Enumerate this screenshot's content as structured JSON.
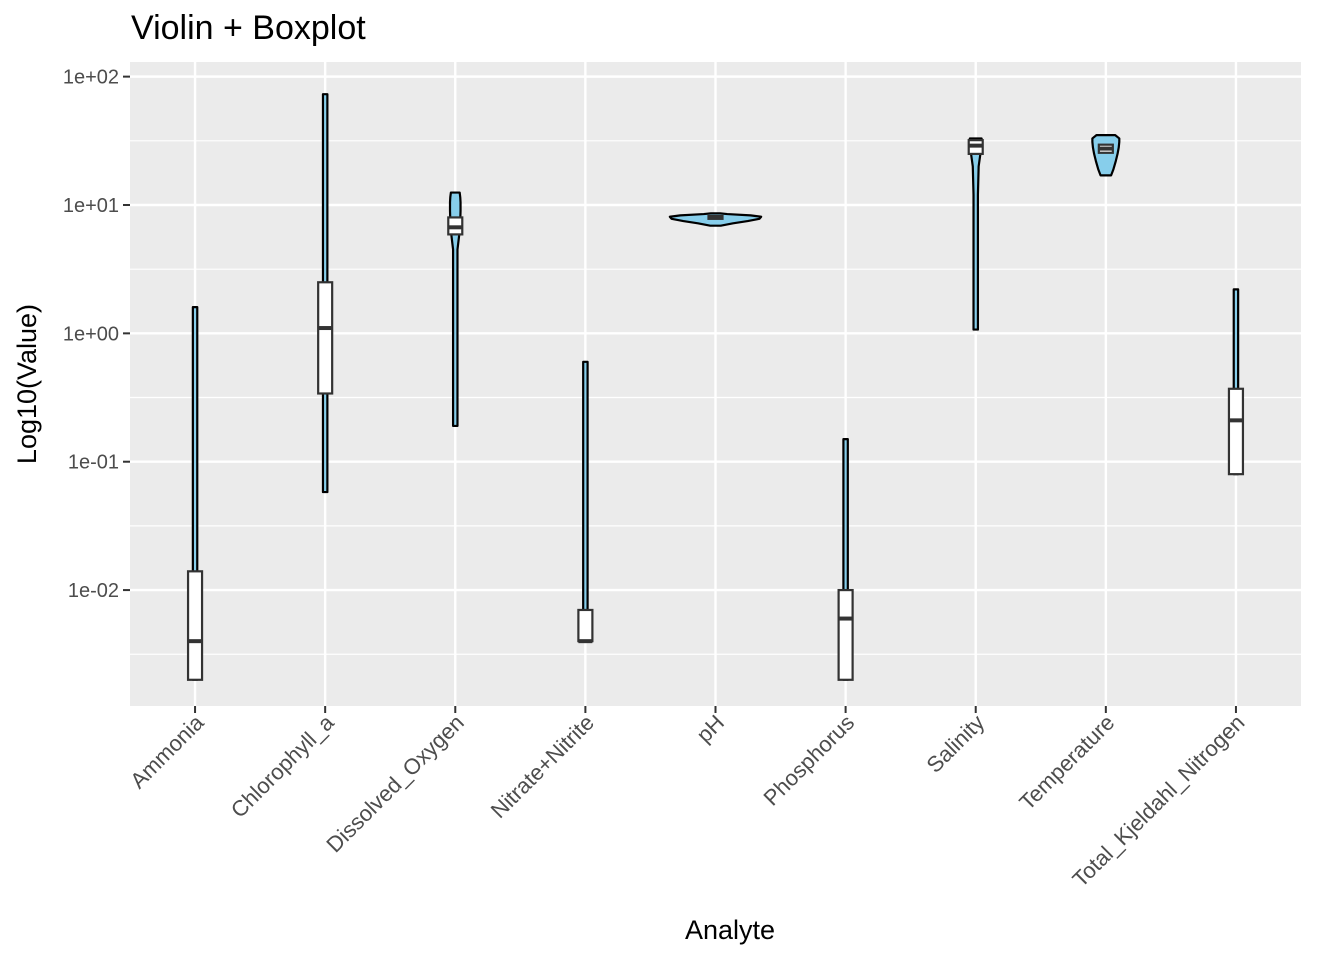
{
  "chart_data": {
    "type": "violin",
    "title": "Violin + Boxplot",
    "xlabel": "Analyte",
    "ylabel": "Log10(Value)",
    "y_scale": "log10",
    "ylim": [
      0.00125,
      130
    ],
    "yticks": [
      {
        "value": 0.01,
        "label": "1e-02"
      },
      {
        "value": 0.1,
        "label": "1e-01"
      },
      {
        "value": 1,
        "label": "1e+00"
      },
      {
        "value": 10,
        "label": "1e+01"
      },
      {
        "value": 100,
        "label": "1e+02"
      }
    ],
    "grid": true,
    "legend": "none",
    "colors": {
      "violin_fill": "#87ceeb",
      "outline": "#000000",
      "panel": "#ebebeb",
      "grid": "#ffffff",
      "box_fill": "#ffffff"
    },
    "categories": [
      "Ammonia",
      "Chlorophyll_a",
      "Dissolved_Oxygen",
      "Nitrate+Nitrite",
      "pH",
      "Phosphorus",
      "Salinity",
      "Temperature",
      "Total_Kjeldahl_Nitrogen"
    ],
    "series": [
      {
        "category": "Ammonia",
        "min": 0.002,
        "max": 1.6,
        "box": {
          "q1": 0.002,
          "median": 0.004,
          "q3": 0.014
        },
        "density": [
          [
            0.002,
            0.0
          ],
          [
            0.004,
            0.0
          ],
          [
            0.014,
            0.0
          ],
          [
            1.6,
            0.0
          ]
        ]
      },
      {
        "category": "Chlorophyll_a",
        "min": 0.058,
        "max": 73,
        "box": {
          "q1": 0.34,
          "median": 1.1,
          "q3": 2.5
        },
        "density": [
          [
            0.058,
            0.0
          ],
          [
            1.1,
            0.0
          ],
          [
            73,
            0.0
          ]
        ]
      },
      {
        "category": "Dissolved_Oxygen",
        "min": 0.19,
        "max": 12.5,
        "box": {
          "q1": 5.9,
          "median": 6.7,
          "q3": 8.0
        },
        "density": [
          [
            0.19,
            0.002
          ],
          [
            1.0,
            0.003
          ],
          [
            2.0,
            0.006
          ],
          [
            3.0,
            0.012
          ],
          [
            4.5,
            0.03
          ],
          [
            6.0,
            0.07
          ],
          [
            7.5,
            0.085
          ],
          [
            9.0,
            0.09
          ],
          [
            10.5,
            0.09
          ],
          [
            11.5,
            0.085
          ],
          [
            12.5,
            0.075
          ]
        ]
      },
      {
        "category": "Nitrate+Nitrite",
        "min": 0.004,
        "max": 0.6,
        "box": {
          "q1": 0.004,
          "median": 0.004,
          "q3": 0.007
        },
        "density": [
          [
            0.004,
            0.0
          ],
          [
            0.007,
            0.01
          ],
          [
            0.01,
            0.015
          ],
          [
            0.02,
            0.01
          ],
          [
            0.04,
            0.004
          ],
          [
            0.1,
            0.002
          ],
          [
            0.6,
            0.0
          ]
        ]
      },
      {
        "category": "pH",
        "min": 6.9,
        "max": 8.6,
        "box": {
          "q1": 7.8,
          "median": 8.0,
          "q3": 8.2
        },
        "density": [
          [
            6.9,
            0.09
          ],
          [
            7.2,
            0.3
          ],
          [
            7.5,
            0.55
          ],
          [
            7.8,
            0.75
          ],
          [
            8.1,
            0.78
          ],
          [
            8.3,
            0.6
          ],
          [
            8.5,
            0.2
          ],
          [
            8.6,
            0.08
          ]
        ]
      },
      {
        "category": "Phosphorus",
        "min": 0.002,
        "max": 0.15,
        "box": {
          "q1": 0.002,
          "median": 0.006,
          "q3": 0.01
        },
        "density": [
          [
            0.002,
            0.0
          ],
          [
            0.01,
            0.004
          ],
          [
            0.05,
            0.003
          ],
          [
            0.15,
            0.0
          ]
        ]
      },
      {
        "category": "Salinity",
        "min": 1.07,
        "max": 33,
        "box": {
          "q1": 25,
          "median": 29,
          "q3": 32
        },
        "density": [
          [
            1.07,
            0.002
          ],
          [
            3.0,
            0.004
          ],
          [
            6.0,
            0.008
          ],
          [
            12.0,
            0.02
          ],
          [
            20.0,
            0.05
          ],
          [
            27.0,
            0.09
          ],
          [
            31.0,
            0.11
          ],
          [
            33.0,
            0.1
          ]
        ]
      },
      {
        "category": "Temperature",
        "min": 17,
        "max": 35,
        "box": {
          "q1": 25.5,
          "median": 27.5,
          "q3": 29.5
        },
        "density": [
          [
            17,
            0.09
          ],
          [
            19,
            0.13
          ],
          [
            22,
            0.17
          ],
          [
            25,
            0.2
          ],
          [
            28,
            0.22
          ],
          [
            31,
            0.23
          ],
          [
            33,
            0.23
          ],
          [
            35,
            0.16
          ]
        ]
      },
      {
        "category": "Total_Kjeldahl_Nitrogen",
        "min": 0.08,
        "max": 2.2,
        "box": {
          "q1": 0.08,
          "median": 0.21,
          "q3": 0.37
        },
        "density": [
          [
            0.08,
            0.0
          ],
          [
            0.37,
            0.02
          ],
          [
            0.6,
            0.018
          ],
          [
            1.0,
            0.012
          ],
          [
            1.6,
            0.006
          ],
          [
            2.2,
            0.0
          ]
        ]
      }
    ]
  }
}
